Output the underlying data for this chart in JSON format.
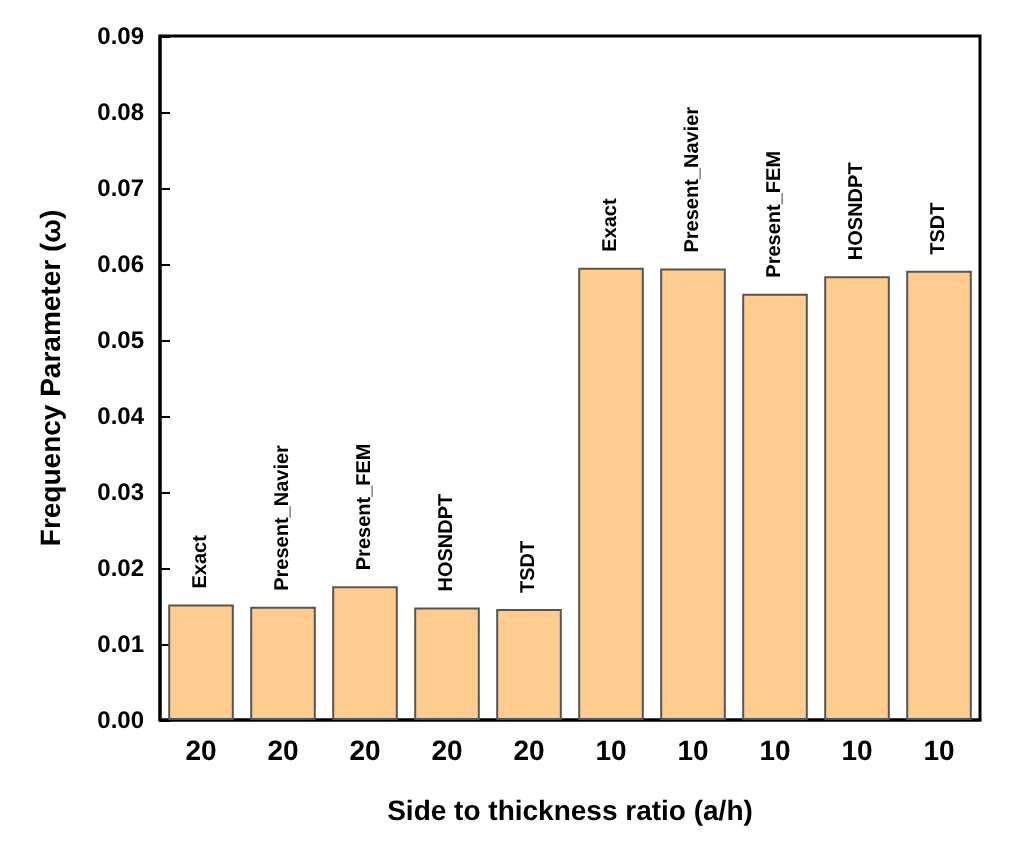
{
  "chart_data": {
    "type": "bar",
    "xlabel": "Side to thickness ratio (a/h)",
    "ylabel": "Frequency Parameter (ω)",
    "categories": [
      "20",
      "20",
      "20",
      "20",
      "20",
      "10",
      "10",
      "10",
      "10",
      "10"
    ],
    "values": [
      0.0152,
      0.0149,
      0.0176,
      0.0148,
      0.0146,
      0.0595,
      0.0594,
      0.0561,
      0.0584,
      0.0591
    ],
    "value_labels": [
      "Exact",
      "Present_Navier",
      "Present_FEM",
      "HOSNDPT",
      "TSDT",
      "Exact",
      "Present_Navier",
      "Present_FEM",
      "HOSNDPT",
      "TSDT"
    ],
    "color": "#ffcc8f",
    "ylim": [
      0,
      0.09
    ],
    "yticks": [
      {
        "value": 0,
        "label": "0.00"
      },
      {
        "value": 0.01,
        "label": "0.01"
      },
      {
        "value": 0.02,
        "label": "0.02"
      },
      {
        "value": 0.03,
        "label": "0.03"
      },
      {
        "value": 0.04,
        "label": "0.04"
      },
      {
        "value": 0.05,
        "label": "0.05"
      },
      {
        "value": 0.06,
        "label": "0.06"
      },
      {
        "value": 0.07,
        "label": "0.07"
      },
      {
        "value": 0.08,
        "label": "0.08"
      },
      {
        "value": 0.09,
        "label": "0.09"
      }
    ],
    "grid": false
  }
}
